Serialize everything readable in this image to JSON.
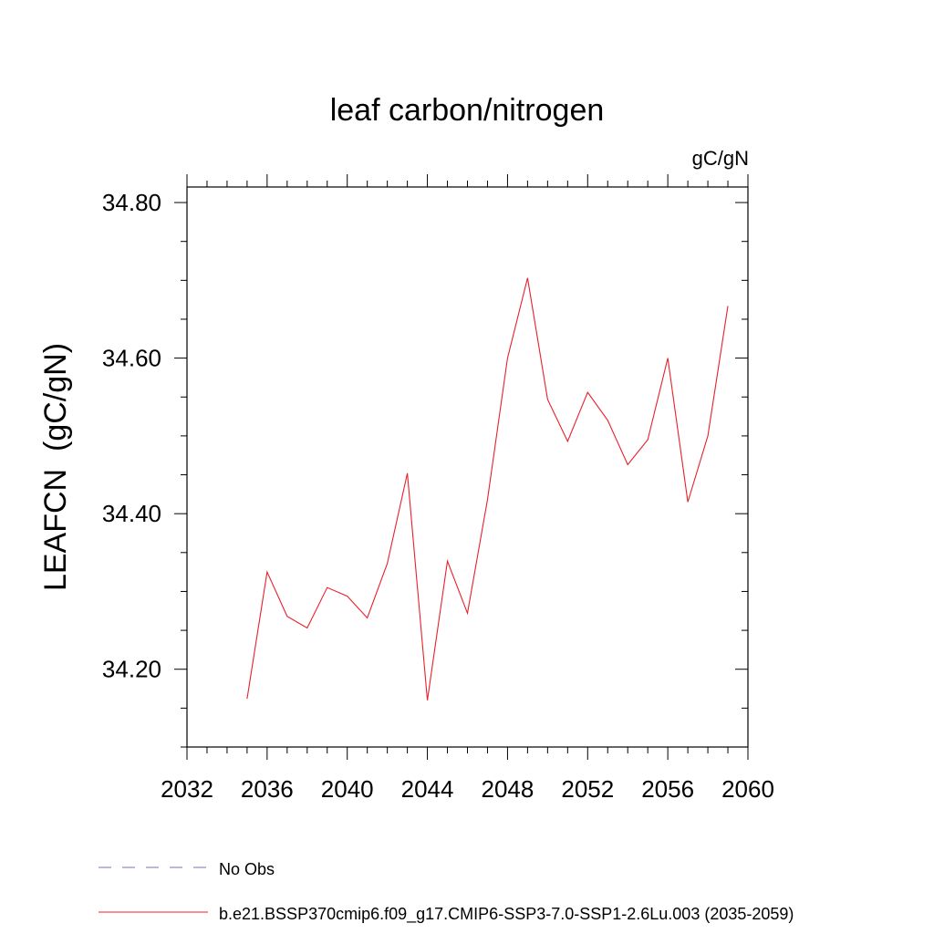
{
  "chart_data": {
    "type": "line",
    "title": "leaf carbon/nitrogen",
    "units_label": "gC/gN",
    "ylabel": "LEAFCN  (gC/gN)",
    "xlabel": "",
    "xlim": [
      2032,
      2060
    ],
    "ylim": [
      34.1,
      34.82
    ],
    "x_major_ticks": [
      2032,
      2036,
      2040,
      2044,
      2048,
      2052,
      2056,
      2060
    ],
    "x_minor_step": 1,
    "y_major_ticks": [
      34.2,
      34.4,
      34.6,
      34.8
    ],
    "y_tick_labels": [
      "34.20",
      "34.40",
      "34.60",
      "34.80"
    ],
    "y_minor_step": 0.05,
    "grid": false,
    "legend_position": "bottom-left",
    "series": [
      {
        "name": "b.e21.BSSP370cmip6.f09_g17.CMIP6-SSP3-7.0-SSP1-2.6Lu.003 (2035-2059)",
        "style": "solid",
        "color": "#e8202a",
        "x": [
          2035,
          2036,
          2037,
          2038,
          2039,
          2040,
          2041,
          2042,
          2043,
          2044,
          2045,
          2046,
          2047,
          2048,
          2049,
          2050,
          2051,
          2052,
          2053,
          2054,
          2055,
          2056,
          2057,
          2058,
          2059
        ],
        "y": [
          34.162,
          34.325,
          34.268,
          34.253,
          34.305,
          34.294,
          34.266,
          34.336,
          34.452,
          34.16,
          34.339,
          34.272,
          34.418,
          34.6,
          34.703,
          34.547,
          34.493,
          34.556,
          34.52,
          34.463,
          34.495,
          34.6,
          34.415,
          34.5,
          34.667
        ]
      },
      {
        "name": "No Obs",
        "style": "dashed",
        "color": "#7b6fb8",
        "x": [],
        "y": []
      }
    ]
  }
}
